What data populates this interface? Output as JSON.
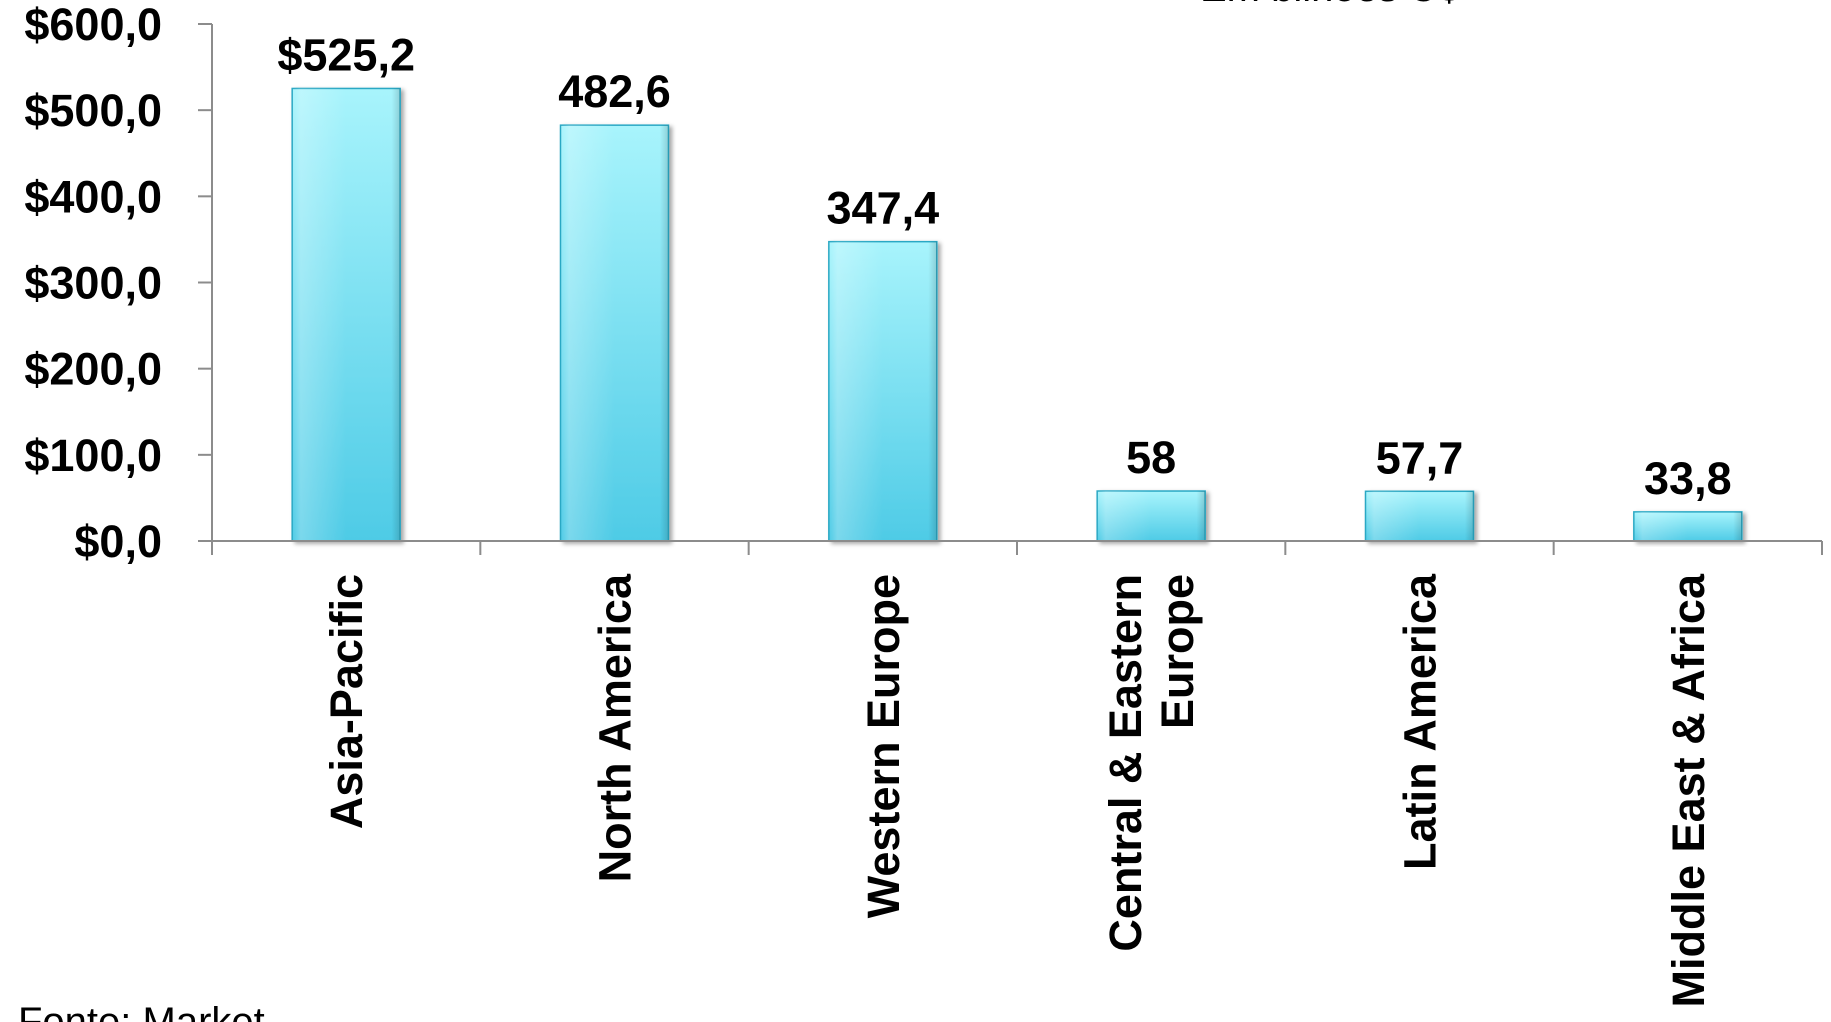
{
  "chart_data": {
    "type": "bar",
    "subtitle": "Em bilhões U$",
    "source_note": "Fonte: Market...",
    "categories": [
      [
        "Asia-Pacific"
      ],
      [
        "North America"
      ],
      [
        "Western Europe"
      ],
      [
        "Central & Eastern",
        "Europe"
      ],
      [
        "Latin America"
      ],
      [
        "Middle East & Africa"
      ]
    ],
    "values": [
      525.2,
      482.6,
      347.4,
      58,
      57.7,
      33.8
    ],
    "data_labels": [
      "$525,2",
      "482,6",
      "347,4",
      "58",
      "57,7",
      "33,8"
    ],
    "y_ticks": [
      0,
      100,
      200,
      300,
      400,
      500,
      600
    ],
    "y_tick_labels": [
      "$0,0",
      "$100,0",
      "$200,0",
      "$300,0",
      "$400,0",
      "$500,0",
      "$600,0"
    ],
    "ylim": [
      0,
      600
    ],
    "xlabel": "",
    "ylabel": "",
    "grid": false,
    "legend": "none",
    "bar_color_top": "#a8f4fc",
    "bar_color_bottom": "#4ecbe6",
    "bar_edge_color": "#2aa8c4",
    "axis_color": "#8c8c8c",
    "text_color": "#000000"
  }
}
